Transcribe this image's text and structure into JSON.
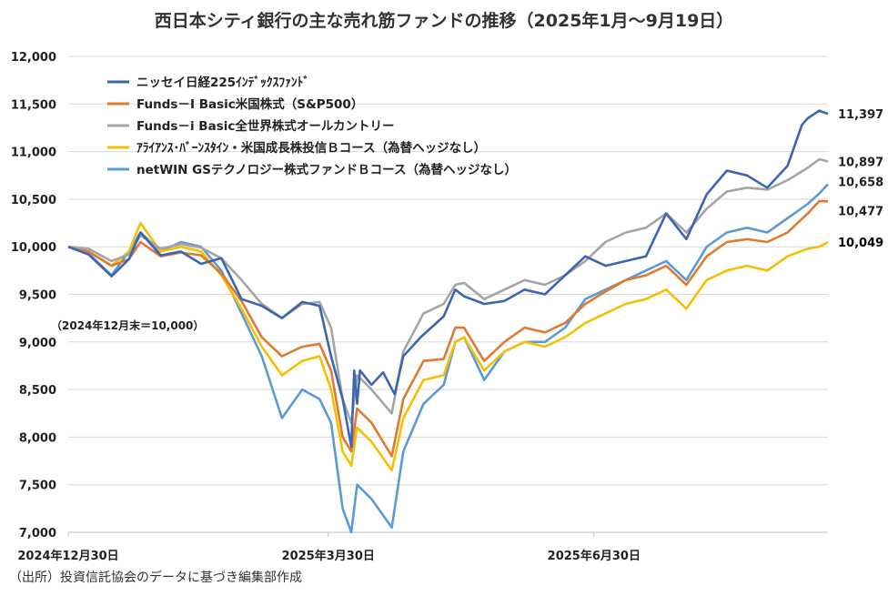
{
  "chart_data": {
    "type": "line",
    "title": "西日本シティ銀行の主な売れ筋ファンドの推移（2025年1月～9月19日）",
    "yticks": [
      "12,000",
      "11,500",
      "11,000",
      "10,500",
      "10,000",
      "9,500",
      "9,000",
      "8,500",
      "8,000",
      "7,500",
      "7,000"
    ],
    "ylim": [
      7000,
      12000
    ],
    "xticks": [
      {
        "label": "2024年12月30日",
        "x": "2024-12-30"
      },
      {
        "label": "2025年3月30日",
        "x": "2025-03-30"
      },
      {
        "label": "2025年6月30日",
        "x": "2025-06-30"
      }
    ],
    "xlim": [
      "2024-12-30",
      "2025-09-19"
    ],
    "grid": true,
    "legend_position": "top-left",
    "baseline_note": "（2024年12月末＝10,000）",
    "source": "（出所）投資信託協会のデータに基づき編集部作成",
    "series": [
      {
        "name": "ニッセイ日経225ｲﾝﾃﾞｯｸｽﾌｧﾝﾄﾞ",
        "color": "#3c66b0",
        "end_label": "11,397",
        "end_color": "#222222",
        "points": [
          [
            "2024-12-30",
            10000
          ],
          [
            "2025-01-06",
            9920
          ],
          [
            "2025-01-14",
            9690
          ],
          [
            "2025-01-20",
            9870
          ],
          [
            "2025-01-24",
            10150
          ],
          [
            "2025-01-31",
            9910
          ],
          [
            "2025-02-07",
            9950
          ],
          [
            "2025-02-14",
            9820
          ],
          [
            "2025-02-21",
            9880
          ],
          [
            "2025-02-28",
            9450
          ],
          [
            "2025-03-07",
            9380
          ],
          [
            "2025-03-14",
            9250
          ],
          [
            "2025-03-21",
            9420
          ],
          [
            "2025-03-27",
            9380
          ],
          [
            "2025-03-31",
            8850
          ],
          [
            "2025-04-04",
            8400
          ],
          [
            "2025-04-07",
            7900
          ],
          [
            "2025-04-08",
            8700
          ],
          [
            "2025-04-09",
            8350
          ],
          [
            "2025-04-10",
            8700
          ],
          [
            "2025-04-14",
            8550
          ],
          [
            "2025-04-18",
            8680
          ],
          [
            "2025-04-22",
            8450
          ],
          [
            "2025-04-25",
            8850
          ],
          [
            "2025-05-01",
            9050
          ],
          [
            "2025-05-09",
            9270
          ],
          [
            "2025-05-13",
            9550
          ],
          [
            "2025-05-16",
            9480
          ],
          [
            "2025-05-23",
            9400
          ],
          [
            "2025-05-30",
            9430
          ],
          [
            "2025-06-06",
            9550
          ],
          [
            "2025-06-13",
            9500
          ],
          [
            "2025-06-20",
            9700
          ],
          [
            "2025-06-27",
            9900
          ],
          [
            "2025-07-04",
            9800
          ],
          [
            "2025-07-11",
            9850
          ],
          [
            "2025-07-18",
            9900
          ],
          [
            "2025-07-25",
            10350
          ],
          [
            "2025-08-01",
            10080
          ],
          [
            "2025-08-08",
            10550
          ],
          [
            "2025-08-15",
            10800
          ],
          [
            "2025-08-22",
            10750
          ],
          [
            "2025-08-29",
            10620
          ],
          [
            "2025-09-05",
            10850
          ],
          [
            "2025-09-10",
            11280
          ],
          [
            "2025-09-12",
            11350
          ],
          [
            "2025-09-16",
            11430
          ],
          [
            "2025-09-19",
            11397
          ]
        ]
      },
      {
        "name": "Funds－I Basic米国株式（S&P500）",
        "color": "#e07a30",
        "end_label": "10,477",
        "end_color": "#222222",
        "points": [
          [
            "2024-12-30",
            10000
          ],
          [
            "2025-01-06",
            9950
          ],
          [
            "2025-01-14",
            9800
          ],
          [
            "2025-01-20",
            9870
          ],
          [
            "2025-01-24",
            10050
          ],
          [
            "2025-01-31",
            9900
          ],
          [
            "2025-02-07",
            9940
          ],
          [
            "2025-02-14",
            9910
          ],
          [
            "2025-02-21",
            9720
          ],
          [
            "2025-02-28",
            9430
          ],
          [
            "2025-03-07",
            9050
          ],
          [
            "2025-03-14",
            8850
          ],
          [
            "2025-03-21",
            8950
          ],
          [
            "2025-03-27",
            8980
          ],
          [
            "2025-03-31",
            8700
          ],
          [
            "2025-04-04",
            8000
          ],
          [
            "2025-04-07",
            7850
          ],
          [
            "2025-04-09",
            8300
          ],
          [
            "2025-04-14",
            8150
          ],
          [
            "2025-04-21",
            7800
          ],
          [
            "2025-04-25",
            8400
          ],
          [
            "2025-05-02",
            8800
          ],
          [
            "2025-05-09",
            8820
          ],
          [
            "2025-05-13",
            9150
          ],
          [
            "2025-05-16",
            9150
          ],
          [
            "2025-05-23",
            8800
          ],
          [
            "2025-05-30",
            9000
          ],
          [
            "2025-06-06",
            9150
          ],
          [
            "2025-06-13",
            9100
          ],
          [
            "2025-06-20",
            9200
          ],
          [
            "2025-06-27",
            9400
          ],
          [
            "2025-07-04",
            9530
          ],
          [
            "2025-07-11",
            9650
          ],
          [
            "2025-07-18",
            9700
          ],
          [
            "2025-07-25",
            9800
          ],
          [
            "2025-08-01",
            9600
          ],
          [
            "2025-08-08",
            9900
          ],
          [
            "2025-08-15",
            10050
          ],
          [
            "2025-08-22",
            10080
          ],
          [
            "2025-08-29",
            10050
          ],
          [
            "2025-09-05",
            10150
          ],
          [
            "2025-09-12",
            10350
          ],
          [
            "2025-09-16",
            10480
          ],
          [
            "2025-09-19",
            10477
          ]
        ]
      },
      {
        "name": "Funds－i Basic全世界株式オールカントリー",
        "color": "#a5a5a5",
        "end_label": "10,897",
        "end_color": "#222222",
        "points": [
          [
            "2024-12-30",
            10000
          ],
          [
            "2025-01-06",
            9980
          ],
          [
            "2025-01-14",
            9850
          ],
          [
            "2025-01-20",
            9920
          ],
          [
            "2025-01-24",
            10120
          ],
          [
            "2025-01-31",
            9980
          ],
          [
            "2025-02-07",
            10030
          ],
          [
            "2025-02-14",
            9990
          ],
          [
            "2025-02-21",
            9880
          ],
          [
            "2025-02-28",
            9650
          ],
          [
            "2025-03-07",
            9400
          ],
          [
            "2025-03-14",
            9250
          ],
          [
            "2025-03-21",
            9400
          ],
          [
            "2025-03-27",
            9420
          ],
          [
            "2025-03-31",
            9150
          ],
          [
            "2025-04-04",
            8400
          ],
          [
            "2025-04-07",
            8150
          ],
          [
            "2025-04-09",
            8650
          ],
          [
            "2025-04-14",
            8500
          ],
          [
            "2025-04-21",
            8250
          ],
          [
            "2025-04-25",
            8900
          ],
          [
            "2025-05-02",
            9300
          ],
          [
            "2025-05-09",
            9400
          ],
          [
            "2025-05-13",
            9600
          ],
          [
            "2025-05-16",
            9620
          ],
          [
            "2025-05-23",
            9450
          ],
          [
            "2025-05-30",
            9550
          ],
          [
            "2025-06-06",
            9650
          ],
          [
            "2025-06-13",
            9600
          ],
          [
            "2025-06-20",
            9700
          ],
          [
            "2025-06-27",
            9850
          ],
          [
            "2025-07-04",
            10050
          ],
          [
            "2025-07-11",
            10150
          ],
          [
            "2025-07-18",
            10200
          ],
          [
            "2025-07-25",
            10350
          ],
          [
            "2025-08-01",
            10150
          ],
          [
            "2025-08-08",
            10400
          ],
          [
            "2025-08-15",
            10580
          ],
          [
            "2025-08-22",
            10620
          ],
          [
            "2025-08-29",
            10600
          ],
          [
            "2025-09-05",
            10700
          ],
          [
            "2025-09-12",
            10830
          ],
          [
            "2025-09-16",
            10920
          ],
          [
            "2025-09-19",
            10897
          ]
        ]
      },
      {
        "name": "ｱﾗｲｱﾝｽ･ﾊﾞｰﾝｽﾀｲﾝ・米国成長株投信Ｂコース（為替ヘッジなし）",
        "color": "#f6c000",
        "end_label": "10,049",
        "end_color": "#000000",
        "points": [
          [
            "2024-12-30",
            10000
          ],
          [
            "2025-01-06",
            9950
          ],
          [
            "2025-01-14",
            9800
          ],
          [
            "2025-01-20",
            9950
          ],
          [
            "2025-01-24",
            10250
          ],
          [
            "2025-01-31",
            9950
          ],
          [
            "2025-02-07",
            10000
          ],
          [
            "2025-02-14",
            9950
          ],
          [
            "2025-02-21",
            9700
          ],
          [
            "2025-02-28",
            9350
          ],
          [
            "2025-03-07",
            8950
          ],
          [
            "2025-03-14",
            8650
          ],
          [
            "2025-03-21",
            8800
          ],
          [
            "2025-03-27",
            8850
          ],
          [
            "2025-03-31",
            8500
          ],
          [
            "2025-04-04",
            7850
          ],
          [
            "2025-04-07",
            7700
          ],
          [
            "2025-04-09",
            8100
          ],
          [
            "2025-04-14",
            7950
          ],
          [
            "2025-04-21",
            7650
          ],
          [
            "2025-04-25",
            8200
          ],
          [
            "2025-05-02",
            8600
          ],
          [
            "2025-05-09",
            8650
          ],
          [
            "2025-05-13",
            9000
          ],
          [
            "2025-05-16",
            9050
          ],
          [
            "2025-05-23",
            8700
          ],
          [
            "2025-05-30",
            8900
          ],
          [
            "2025-06-06",
            9000
          ],
          [
            "2025-06-13",
            8950
          ],
          [
            "2025-06-20",
            9050
          ],
          [
            "2025-06-27",
            9200
          ],
          [
            "2025-07-04",
            9300
          ],
          [
            "2025-07-11",
            9400
          ],
          [
            "2025-07-18",
            9450
          ],
          [
            "2025-07-25",
            9550
          ],
          [
            "2025-08-01",
            9350
          ],
          [
            "2025-08-08",
            9650
          ],
          [
            "2025-08-15",
            9750
          ],
          [
            "2025-08-22",
            9800
          ],
          [
            "2025-08-29",
            9750
          ],
          [
            "2025-09-05",
            9900
          ],
          [
            "2025-09-12",
            9980
          ],
          [
            "2025-09-16",
            10000
          ],
          [
            "2025-09-19",
            10049
          ]
        ]
      },
      {
        "name": "netWIN GSテクノロジー株式ファンドＢコース（為替ヘッジなし）",
        "color": "#5b9bd5",
        "end_label": "10,658",
        "end_color": "#222222",
        "points": [
          [
            "2024-12-30",
            10000
          ],
          [
            "2025-01-06",
            9930
          ],
          [
            "2025-01-14",
            9700
          ],
          [
            "2025-01-20",
            9950
          ],
          [
            "2025-01-24",
            10150
          ],
          [
            "2025-01-31",
            9950
          ],
          [
            "2025-02-07",
            10050
          ],
          [
            "2025-02-14",
            10000
          ],
          [
            "2025-02-21",
            9750
          ],
          [
            "2025-02-28",
            9300
          ],
          [
            "2025-03-07",
            8850
          ],
          [
            "2025-03-14",
            8200
          ],
          [
            "2025-03-21",
            8500
          ],
          [
            "2025-03-27",
            8400
          ],
          [
            "2025-03-31",
            8150
          ],
          [
            "2025-04-04",
            7250
          ],
          [
            "2025-04-07",
            7000
          ],
          [
            "2025-04-09",
            7500
          ],
          [
            "2025-04-14",
            7350
          ],
          [
            "2025-04-21",
            7050
          ],
          [
            "2025-04-25",
            7850
          ],
          [
            "2025-05-02",
            8350
          ],
          [
            "2025-05-09",
            8550
          ],
          [
            "2025-05-13",
            9000
          ],
          [
            "2025-05-16",
            9050
          ],
          [
            "2025-05-23",
            8600
          ],
          [
            "2025-05-30",
            8900
          ],
          [
            "2025-06-06",
            9000
          ],
          [
            "2025-06-13",
            9000
          ],
          [
            "2025-06-20",
            9150
          ],
          [
            "2025-06-27",
            9450
          ],
          [
            "2025-07-04",
            9550
          ],
          [
            "2025-07-11",
            9650
          ],
          [
            "2025-07-18",
            9750
          ],
          [
            "2025-07-25",
            9850
          ],
          [
            "2025-08-01",
            9650
          ],
          [
            "2025-08-08",
            10000
          ],
          [
            "2025-08-15",
            10150
          ],
          [
            "2025-08-22",
            10200
          ],
          [
            "2025-08-29",
            10150
          ],
          [
            "2025-09-05",
            10300
          ],
          [
            "2025-09-12",
            10450
          ],
          [
            "2025-09-16",
            10560
          ],
          [
            "2025-09-19",
            10658
          ]
        ]
      }
    ]
  }
}
